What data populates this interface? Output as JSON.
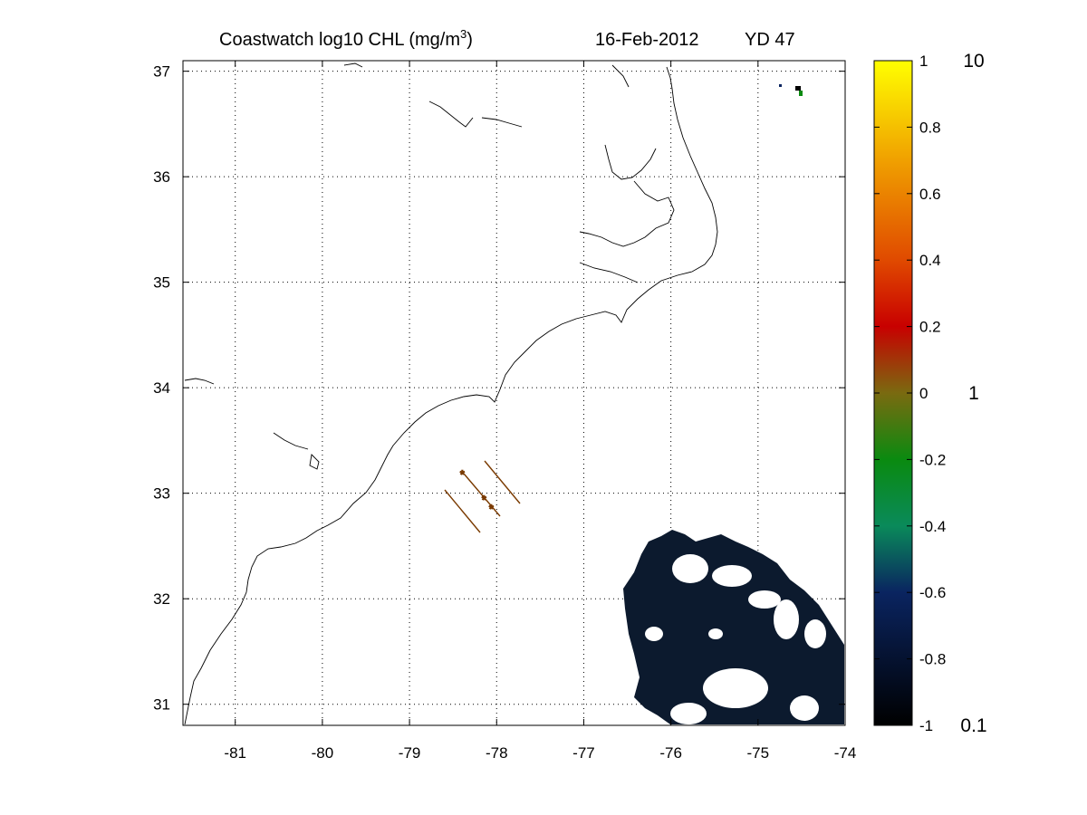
{
  "title": {
    "prefix": "Coastwatch  log10  CHL (mg/m",
    "superscript": "3",
    "suffix": ")",
    "date": "16-Feb-2012",
    "yearday": "YD 47"
  },
  "map": {
    "lon_range": [
      -81.6,
      -74.0
    ],
    "lat_range": [
      30.8,
      37.1
    ],
    "lon_ticks": [
      {
        "value": -81,
        "label": "-81"
      },
      {
        "value": -80,
        "label": "-80"
      },
      {
        "value": -79,
        "label": "-79"
      },
      {
        "value": -78,
        "label": "-78"
      },
      {
        "value": -77,
        "label": "-77"
      },
      {
        "value": -76,
        "label": "-76"
      },
      {
        "value": -75,
        "label": "-75"
      },
      {
        "value": -74,
        "label": "-74"
      }
    ],
    "lat_ticks": [
      {
        "value": 31,
        "label": "31"
      },
      {
        "value": 32,
        "label": "32"
      },
      {
        "value": 33,
        "label": "33"
      },
      {
        "value": 34,
        "label": "34"
      },
      {
        "value": 35,
        "label": "35"
      },
      {
        "value": 36,
        "label": "36"
      },
      {
        "value": 37,
        "label": "37"
      }
    ],
    "grid": "dotted",
    "coastline_color": "#000000",
    "track_color": "#7a3a00",
    "data_fill_color": "#0c1a2e"
  },
  "colorbar": {
    "range": [
      -1,
      1
    ],
    "ticks": [
      {
        "value": 1,
        "label": "1"
      },
      {
        "value": 0.8,
        "label": "0.8"
      },
      {
        "value": 0.6,
        "label": "0.6"
      },
      {
        "value": 0.4,
        "label": "0.4"
      },
      {
        "value": 0.2,
        "label": "0.2"
      },
      {
        "value": 0,
        "label": "0"
      },
      {
        "value": -0.2,
        "label": "-0.2"
      },
      {
        "value": -0.4,
        "label": "-0.4"
      },
      {
        "value": -0.6,
        "label": "-0.6"
      },
      {
        "value": -0.8,
        "label": "-0.8"
      },
      {
        "value": -1,
        "label": "-1"
      }
    ],
    "stops": [
      {
        "value": -1,
        "color": "#000000"
      },
      {
        "value": -0.6,
        "color": "#0a2460"
      },
      {
        "value": -0.4,
        "color": "#0a8a5a"
      },
      {
        "value": -0.2,
        "color": "#0a8a10"
      },
      {
        "value": 0.0,
        "color": "#7a6a10"
      },
      {
        "value": 0.2,
        "color": "#c80000"
      },
      {
        "value": 0.4,
        "color": "#e04a00"
      },
      {
        "value": 0.7,
        "color": "#f0a000"
      },
      {
        "value": 1,
        "color": "#ffff00"
      }
    ],
    "linear_labels": [
      {
        "value": 1,
        "label": "10"
      },
      {
        "value": 0,
        "label": "1"
      },
      {
        "value": -1,
        "label": "0.1"
      }
    ],
    "linear_label_color": "#b23a00"
  }
}
